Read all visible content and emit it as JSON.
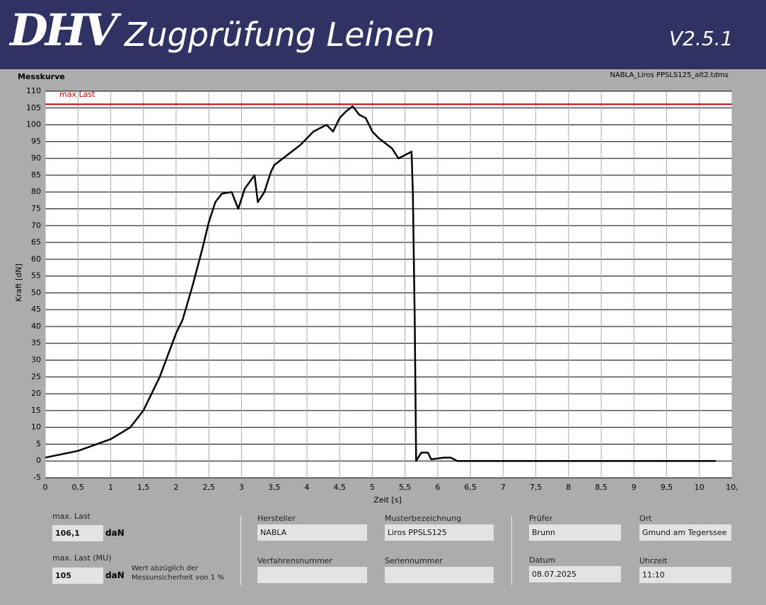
{
  "header": {
    "logo": "DHV",
    "title": "Zugprüfung Leinen",
    "version": "V2.5.1"
  },
  "chart_data": {
    "type": "line",
    "title": "Messkurve",
    "file": "NABLA_Liros PPSLS125_alt2.tdms",
    "x_label": "Zeit [s]",
    "y_label": "Kraft [dN]",
    "x": [
      0,
      0.5,
      1,
      1.3,
      1.5,
      1.75,
      2,
      2.1,
      2.25,
      2.4,
      2.5,
      2.6,
      2.7,
      2.85,
      2.95,
      3.05,
      3.2,
      3.25,
      3.35,
      3.45,
      3.5,
      3.7,
      3.9,
      4.1,
      4.3,
      4.4,
      4.5,
      4.6,
      4.7,
      4.8,
      4.9,
      5,
      5.1,
      5.3,
      5.4,
      5.5,
      5.6,
      5.62,
      5.65,
      5.67,
      5.75,
      5.85,
      5.9,
      6.1,
      6.2,
      6.3,
      7,
      8,
      9,
      10.25
    ],
    "series": [
      {
        "color": "#000000",
        "values": [
          1,
          3,
          6.5,
          10,
          15,
          25,
          38,
          42,
          52,
          63,
          71,
          77,
          79.5,
          80,
          75,
          81,
          85,
          77,
          80,
          86,
          88,
          91,
          94,
          98,
          100,
          98,
          102,
          104,
          105.5,
          103,
          102,
          98,
          96,
          93,
          90,
          91,
          92,
          80,
          40,
          0,
          2.5,
          2.5,
          0.5,
          1,
          1,
          0,
          0,
          0,
          0,
          0
        ]
      }
    ],
    "max_line": {
      "label": "max Last",
      "value": 106.1,
      "color": "#c00000"
    },
    "xlim": [
      0,
      10.5
    ],
    "ylim": [
      -5,
      110
    ],
    "xticks": [
      0,
      {
        "value": 0.5,
        "label": "0,5"
      },
      1,
      {
        "value": 1.5,
        "label": "1,5"
      },
      2,
      {
        "value": 2.5,
        "label": "2,5"
      },
      3,
      {
        "value": 3.5,
        "label": "3,5"
      },
      4,
      {
        "value": 4.5,
        "label": "4,5"
      },
      5,
      {
        "value": 5.5,
        "label": "5,5"
      },
      6,
      {
        "value": 6.5,
        "label": "6,5"
      },
      7,
      {
        "value": 7.5,
        "label": "7,5"
      },
      8,
      {
        "value": 8.5,
        "label": "8,5"
      },
      9,
      {
        "value": 9.5,
        "label": "9,5"
      },
      10,
      {
        "value": 10.5,
        "label": "10,"
      }
    ],
    "yticks": [
      -5,
      0,
      5,
      10,
      15,
      20,
      25,
      30,
      35,
      40,
      45,
      50,
      55,
      60,
      65,
      70,
      75,
      80,
      85,
      90,
      95,
      100,
      105,
      110
    ],
    "grid": true
  },
  "panel": {
    "max_last": {
      "label": "max. Last",
      "value": "106,1",
      "unit": "daN"
    },
    "max_last_mu": {
      "label": "max. Last (MU)",
      "value": "105",
      "unit": "daN",
      "note": [
        "Wert abzüglich der",
        "Messunsicherheit von 1 %"
      ]
    },
    "hersteller": {
      "label": "Hersteller",
      "value": "NABLA"
    },
    "muster": {
      "label": "Musterbezeichnung",
      "value": "Liros PPSLS125"
    },
    "verfahren": {
      "label": "Verfahrensnummer"
    },
    "serie": {
      "label": "Seriennummer"
    },
    "pruefer": {
      "label": "Prüfer",
      "value": "Brunn"
    },
    "ort": {
      "label": "Ort",
      "value": "Gmund am Tegerssee"
    },
    "datum": {
      "label": "Datum",
      "value": "08.07.2025"
    },
    "uhrzeit": {
      "label": "Uhrzeit",
      "value": "11:10"
    }
  }
}
